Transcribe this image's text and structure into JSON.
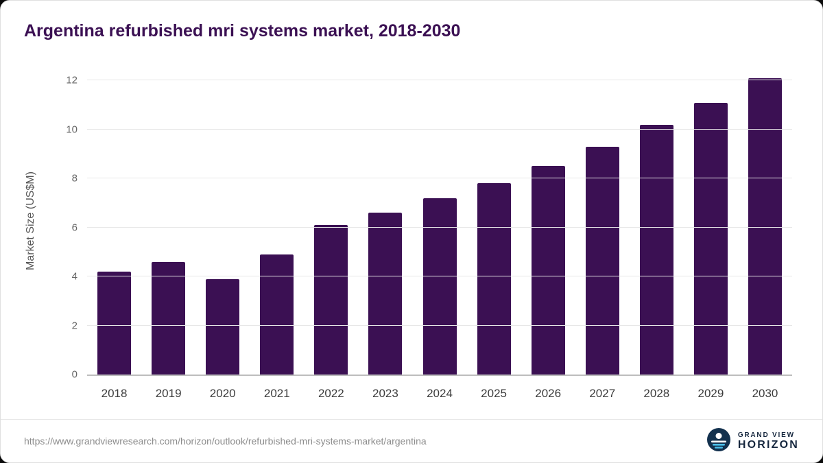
{
  "header": {
    "title": "Argentina refurbished mri systems market, 2018-2030"
  },
  "chart_data": {
    "type": "bar",
    "title": "Argentina refurbished mri systems market, 2018-2030",
    "ylabel": "Market Size (US$M)",
    "xlabel": "",
    "categories": [
      "2018",
      "2019",
      "2020",
      "2021",
      "2022",
      "2023",
      "2024",
      "2025",
      "2026",
      "2027",
      "2028",
      "2029",
      "2030"
    ],
    "values": [
      4.2,
      4.6,
      3.9,
      4.9,
      6.1,
      6.6,
      7.2,
      7.8,
      8.5,
      9.3,
      10.2,
      11.1,
      12.1
    ],
    "ylim": [
      0,
      12.6
    ],
    "yticks": [
      0,
      2,
      4,
      6,
      8,
      10,
      12
    ],
    "grid": true,
    "legend": "none",
    "bar_color": "#3b1053"
  },
  "footer": {
    "source_url": "https://www.grandviewresearch.com/horizon/outlook/refurbished-mri-systems-market/argentina",
    "logo": {
      "line1": "GRAND VIEW",
      "line2": "HORIZON"
    }
  },
  "colors": {
    "title": "#3b1053",
    "bar": "#3b1053",
    "axis_text": "#666666",
    "x_label_text": "#3c3c3c",
    "gridline": "#e7e7e7",
    "baseline": "#bdbdbd",
    "footer_text": "#8c8c8c",
    "logo_navy": "#13314e",
    "logo_blue": "#4cc1ec"
  }
}
